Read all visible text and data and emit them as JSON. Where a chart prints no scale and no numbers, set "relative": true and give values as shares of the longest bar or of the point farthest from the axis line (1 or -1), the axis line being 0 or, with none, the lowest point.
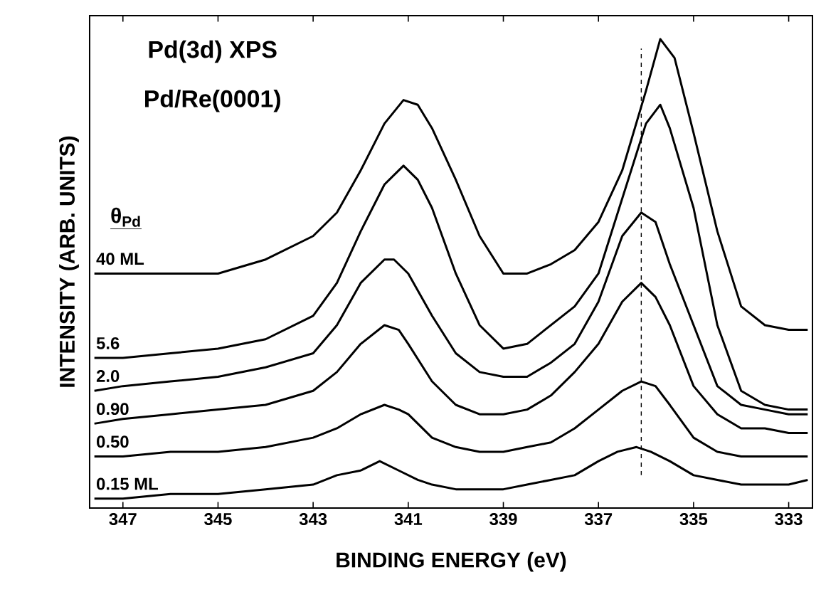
{
  "chart_data": {
    "type": "line",
    "title": "Pd(3d) XPS",
    "subtitle": "Pd/Re(0001)",
    "xlabel": "BINDING ENERGY (eV)",
    "ylabel": "INTENSITY (ARB. UNITS)",
    "legend_title": "θ$_{Pd}$",
    "relative": true,
    "xlim": [
      347.7,
      332.5
    ],
    "xticks": [
      347,
      345,
      343,
      341,
      339,
      337,
      335,
      333
    ],
    "grid": false,
    "marker": "none",
    "line_style": "solid",
    "ref_lines": [
      {
        "axis": "x",
        "value": 336.1,
        "line_style": "dashed",
        "color": "#000000"
      }
    ],
    "series": [
      {
        "name": "40 ML",
        "color": "#000000",
        "x": [
          347.6,
          347,
          346,
          345,
          344,
          343,
          342.5,
          342,
          341.5,
          341.1,
          340.8,
          340.5,
          340,
          339.5,
          339,
          338.5,
          338,
          337.5,
          337,
          336.5,
          336,
          335.7,
          335.4,
          335,
          334.5,
          334,
          333.5,
          333,
          332.6
        ],
        "values": [
          0.5,
          0.5,
          0.5,
          0.5,
          0.53,
          0.58,
          0.63,
          0.72,
          0.82,
          0.87,
          0.86,
          0.81,
          0.7,
          0.58,
          0.5,
          0.5,
          0.52,
          0.55,
          0.61,
          0.72,
          0.89,
          1,
          0.96,
          0.8,
          0.59,
          0.43,
          0.39,
          0.38,
          0.38
        ]
      },
      {
        "name": "5.6",
        "color": "#000000",
        "x": [
          347.6,
          347,
          346,
          345,
          344,
          343,
          342.5,
          342,
          341.5,
          341.1,
          340.8,
          340.5,
          340,
          339.5,
          339,
          338.5,
          338,
          337.5,
          337,
          336.5,
          336,
          335.7,
          335.5,
          335,
          334.5,
          334,
          333.5,
          333,
          332.6
        ],
        "values": [
          0.32,
          0.32,
          0.33,
          0.34,
          0.36,
          0.41,
          0.48,
          0.59,
          0.69,
          0.73,
          0.7,
          0.64,
          0.5,
          0.39,
          0.34,
          0.35,
          0.39,
          0.43,
          0.5,
          0.66,
          0.82,
          0.86,
          0.81,
          0.64,
          0.39,
          0.25,
          0.22,
          0.21,
          0.21
        ]
      },
      {
        "name": "2.0",
        "color": "#000000",
        "x": [
          347.6,
          347,
          346,
          345,
          344,
          343,
          342.5,
          342,
          341.5,
          341.3,
          341,
          340.5,
          340,
          339.5,
          339,
          338.5,
          338,
          337.5,
          337,
          336.5,
          336.1,
          335.8,
          335.5,
          335,
          334.5,
          334,
          333.5,
          333,
          332.6
        ],
        "values": [
          0.25,
          0.26,
          0.27,
          0.28,
          0.3,
          0.33,
          0.39,
          0.48,
          0.53,
          0.53,
          0.5,
          0.41,
          0.33,
          0.29,
          0.28,
          0.28,
          0.31,
          0.35,
          0.44,
          0.58,
          0.63,
          0.61,
          0.52,
          0.39,
          0.26,
          0.22,
          0.21,
          0.2,
          0.2
        ]
      },
      {
        "name": "0.90",
        "color": "#000000",
        "x": [
          347.6,
          347,
          346,
          345,
          344,
          343,
          342.5,
          342,
          341.5,
          341.2,
          341,
          340.5,
          340,
          339.5,
          339,
          338.5,
          338,
          337.5,
          337,
          336.5,
          336.1,
          335.8,
          335.5,
          335,
          334.5,
          334,
          333.5,
          333,
          332.6
        ],
        "values": [
          0.18,
          0.19,
          0.2,
          0.21,
          0.22,
          0.25,
          0.29,
          0.35,
          0.39,
          0.38,
          0.35,
          0.27,
          0.22,
          0.2,
          0.2,
          0.21,
          0.24,
          0.29,
          0.35,
          0.44,
          0.48,
          0.45,
          0.39,
          0.26,
          0.2,
          0.17,
          0.17,
          0.16,
          0.16
        ]
      },
      {
        "name": "0.50",
        "color": "#000000",
        "x": [
          347.6,
          347,
          346,
          345,
          344,
          343,
          342.5,
          342,
          341.5,
          341.2,
          341,
          340.5,
          340,
          339.5,
          339,
          338.5,
          338,
          337.5,
          337,
          336.5,
          336.1,
          335.8,
          335.5,
          335,
          334.5,
          334,
          333.5,
          333,
          332.6
        ],
        "values": [
          0.11,
          0.11,
          0.12,
          0.12,
          0.13,
          0.15,
          0.17,
          0.2,
          0.22,
          0.21,
          0.2,
          0.15,
          0.13,
          0.12,
          0.12,
          0.13,
          0.14,
          0.17,
          0.21,
          0.25,
          0.27,
          0.26,
          0.22,
          0.15,
          0.12,
          0.11,
          0.11,
          0.11,
          0.11
        ]
      },
      {
        "name": "0.15 ML",
        "color": "#000000",
        "x": [
          347.6,
          347,
          346,
          345,
          344,
          343,
          342.5,
          342,
          341.6,
          341.2,
          340.8,
          340.5,
          340,
          339.5,
          339,
          338.5,
          338,
          337.5,
          337,
          336.6,
          336.2,
          335.9,
          335.5,
          335,
          334.5,
          334,
          333.5,
          333,
          332.6
        ],
        "values": [
          0.02,
          0.02,
          0.03,
          0.03,
          0.04,
          0.05,
          0.07,
          0.08,
          0.1,
          0.08,
          0.06,
          0.05,
          0.04,
          0.04,
          0.04,
          0.05,
          0.06,
          0.07,
          0.1,
          0.12,
          0.13,
          0.12,
          0.1,
          0.07,
          0.06,
          0.05,
          0.05,
          0.05,
          0.06
        ]
      }
    ]
  }
}
